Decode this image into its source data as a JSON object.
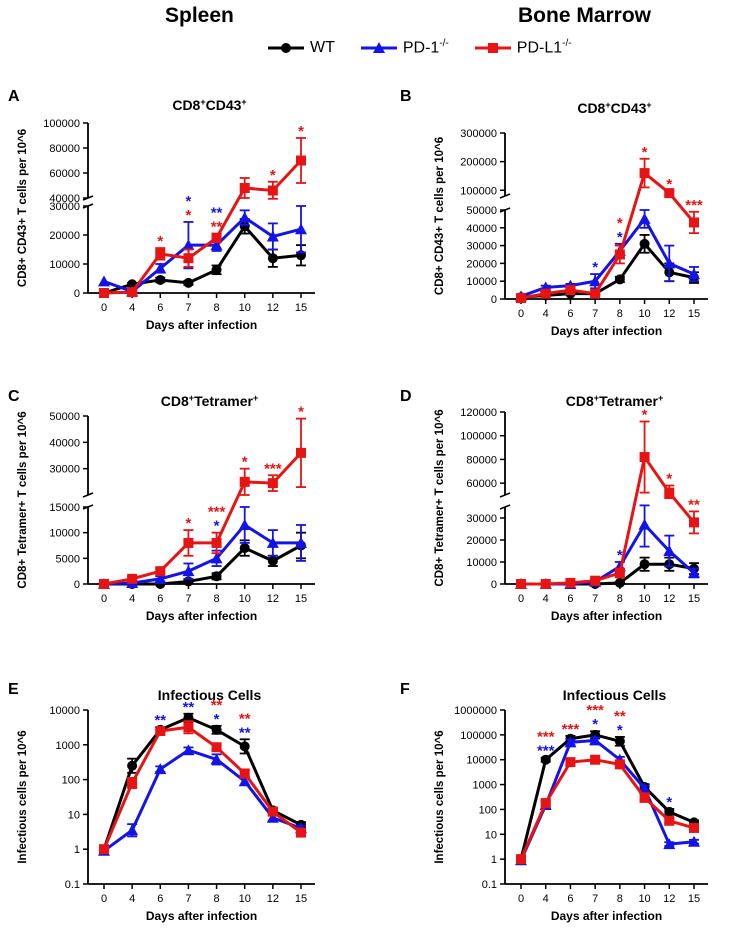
{
  "figure": {
    "col_titles": [
      "Spleen",
      "Bone Marrow"
    ],
    "panel_letters": [
      "A",
      "B",
      "C",
      "D",
      "E",
      "F"
    ]
  },
  "legend": {
    "wt": {
      "label": "WT",
      "color": "#000000",
      "marker": "circle"
    },
    "pd1": {
      "label": "PD-1",
      "sup": "-/-",
      "color": "#1414e6",
      "marker": "triangle"
    },
    "pdl1": {
      "label": "PD-L1",
      "sup": "-/-",
      "color": "#e61414",
      "marker": "square"
    }
  },
  "chart_data": [
    {
      "id": "A",
      "type": "line",
      "title": "CD8",
      "title_sup": "+",
      "title_rest": "CD43",
      "title_sup2": "+",
      "ylabel": "CD8+ CD43+ T cells per 10^6",
      "xlabel": "Days after infection",
      "x": [
        0,
        4,
        6,
        7,
        8,
        10,
        12,
        15
      ],
      "scale": "broken",
      "lower_range": [
        0,
        30000
      ],
      "upper_range": [
        40000,
        100000
      ],
      "lower_ticks": [
        0,
        10000,
        20000,
        30000
      ],
      "upper_ticks": [
        40000,
        60000,
        80000,
        100000
      ],
      "series": [
        {
          "name": "WT",
          "values": [
            0,
            3000,
            4500,
            3500,
            8000,
            23000,
            12000,
            13000
          ],
          "err": [
            0,
            500,
            800,
            700,
            1500,
            2500,
            3000,
            3500
          ]
        },
        {
          "name": "PD-1-/-",
          "values": [
            4000,
            500,
            8500,
            16500,
            16500,
            26000,
            19500,
            22000
          ],
          "err": [
            0,
            500,
            1500,
            8000,
            2000,
            2500,
            4500,
            8000
          ]
        },
        {
          "name": "PD-L1-/-",
          "values": [
            0,
            300,
            13500,
            12000,
            19000,
            48000,
            46000,
            70000
          ],
          "err": [
            0,
            300,
            2000,
            3000,
            1500,
            8000,
            7000,
            18000
          ]
        }
      ],
      "annotations": [
        {
          "x": 6,
          "lines": [
            {
              "text": "*",
              "color": "#e61414"
            }
          ]
        },
        {
          "x": 7,
          "lines": [
            {
              "text": "*",
              "color": "#1414e6"
            },
            {
              "text": "*",
              "color": "#e61414"
            }
          ]
        },
        {
          "x": 8,
          "lines": [
            {
              "text": "**",
              "color": "#1414e6"
            },
            {
              "text": "**",
              "color": "#e61414"
            }
          ]
        },
        {
          "x": 12,
          "lines": [
            {
              "text": "*",
              "color": "#e61414"
            }
          ]
        },
        {
          "x": 15,
          "lines": [
            {
              "text": "*",
              "color": "#e61414"
            }
          ]
        }
      ]
    },
    {
      "id": "B",
      "type": "line",
      "title": "CD8",
      "title_sup": "+",
      "title_rest": "CD43",
      "title_sup2": "+",
      "ylabel": "CD8+ CD43+ T cells per 10^6",
      "xlabel": "Days after infection",
      "x": [
        0,
        4,
        6,
        7,
        8,
        10,
        12,
        15
      ],
      "scale": "broken",
      "lower_range": [
        0,
        50000
      ],
      "upper_range": [
        80000,
        300000
      ],
      "lower_ticks": [
        0,
        10000,
        20000,
        30000,
        40000,
        50000
      ],
      "upper_ticks": [
        100000,
        200000,
        300000
      ],
      "series": [
        {
          "name": "WT",
          "values": [
            1000,
            2000,
            3000,
            3000,
            11000,
            31000,
            15000,
            12000
          ],
          "err": [
            0,
            500,
            500,
            800,
            1500,
            5000,
            5000,
            3000
          ]
        },
        {
          "name": "PD-1-/-",
          "values": [
            1500,
            6500,
            7500,
            10000,
            27000,
            45000,
            20000,
            14000
          ],
          "err": [
            0,
            1000,
            1000,
            4000,
            4000,
            5000,
            10000,
            4000
          ]
        },
        {
          "name": "PD-L1-/-",
          "values": [
            500,
            3000,
            5000,
            3000,
            25000,
            160000,
            90000,
            43000
          ],
          "err": [
            0,
            500,
            1000,
            800,
            5000,
            50000,
            8000,
            6000
          ]
        }
      ],
      "annotations": [
        {
          "x": 7,
          "lines": [
            {
              "text": "*",
              "color": "#1414e6"
            }
          ]
        },
        {
          "x": 8,
          "lines": [
            {
              "text": "*",
              "color": "#e61414"
            },
            {
              "text": "*",
              "color": "#1414e6"
            }
          ]
        },
        {
          "x": 10,
          "lines": [
            {
              "text": "*",
              "color": "#e61414"
            }
          ]
        },
        {
          "x": 12,
          "lines": [
            {
              "text": "*",
              "color": "#e61414"
            }
          ]
        },
        {
          "x": 15,
          "lines": [
            {
              "text": "***",
              "color": "#e61414"
            }
          ]
        }
      ]
    },
    {
      "id": "C",
      "type": "line",
      "title": "CD8",
      "title_sup": "+",
      "title_rest": "Tetramer",
      "title_sup2": "+",
      "ylabel": "CD8+ Tetramer+ T cells per 10^6",
      "xlabel": "Days after infection",
      "x": [
        0,
        4,
        6,
        7,
        8,
        10,
        12,
        15
      ],
      "scale": "broken",
      "lower_range": [
        0,
        15000
      ],
      "upper_range": [
        20000,
        50000
      ],
      "lower_ticks": [
        0,
        5000,
        10000,
        15000
      ],
      "upper_ticks": [
        30000,
        40000,
        50000
      ],
      "series": [
        {
          "name": "WT",
          "values": [
            0,
            0,
            0,
            500,
            1500,
            7000,
            4500,
            7500
          ],
          "err": [
            0,
            0,
            200,
            300,
            600,
            1500,
            1000,
            2500
          ]
        },
        {
          "name": "PD-1-/-",
          "values": [
            0,
            200,
            1000,
            2500,
            5000,
            11500,
            8000,
            8000
          ],
          "err": [
            0,
            200,
            500,
            1500,
            1500,
            3500,
            2500,
            3500
          ]
        },
        {
          "name": "PD-L1-/-",
          "values": [
            0,
            1000,
            2500,
            8000,
            8000,
            25000,
            24500,
            36000
          ],
          "err": [
            0,
            300,
            500,
            2500,
            2000,
            5000,
            3000,
            13000
          ]
        }
      ],
      "annotations": [
        {
          "x": 7,
          "lines": [
            {
              "text": "*",
              "color": "#e61414"
            }
          ]
        },
        {
          "x": 8,
          "lines": [
            {
              "text": "***",
              "color": "#e61414"
            },
            {
              "text": "*",
              "color": "#1414e6"
            }
          ]
        },
        {
          "x": 10,
          "lines": [
            {
              "text": "*",
              "color": "#e61414"
            }
          ]
        },
        {
          "x": 12,
          "lines": [
            {
              "text": "***",
              "color": "#e61414"
            }
          ]
        },
        {
          "x": 15,
          "lines": [
            {
              "text": "*",
              "color": "#e61414"
            }
          ]
        }
      ]
    },
    {
      "id": "D",
      "type": "line",
      "title": "CD8",
      "title_sup": "+",
      "title_rest": "Tetramer",
      "title_sup2": "+",
      "ylabel": "CD8+ Tetramer+ T cells per 10^6",
      "xlabel": "Days after infection",
      "x": [
        0,
        4,
        6,
        7,
        8,
        10,
        12,
        15
      ],
      "scale": "broken",
      "lower_range": [
        0,
        35000
      ],
      "upper_range": [
        50000,
        120000
      ],
      "lower_ticks": [
        0,
        10000,
        20000,
        30000
      ],
      "upper_ticks": [
        60000,
        80000,
        100000,
        120000
      ],
      "series": [
        {
          "name": "WT",
          "values": [
            0,
            0,
            0,
            0,
            500,
            9000,
            9000,
            7000
          ],
          "err": [
            0,
            0,
            0,
            200,
            300,
            3000,
            3000,
            2500
          ]
        },
        {
          "name": "PD-1-/-",
          "values": [
            0,
            0,
            0,
            1000,
            8000,
            27000,
            15000,
            5000
          ],
          "err": [
            0,
            0,
            200,
            500,
            2000,
            10000,
            7000,
            2000
          ]
        },
        {
          "name": "PD-L1-/-",
          "values": [
            0,
            0,
            500,
            1500,
            5000,
            82000,
            52000,
            28000
          ],
          "err": [
            0,
            0,
            200,
            600,
            2000,
            30000,
            6000,
            5000
          ]
        }
      ],
      "annotations": [
        {
          "x": 8,
          "lines": [
            {
              "text": "*",
              "color": "#1414e6"
            }
          ]
        },
        {
          "x": 10,
          "lines": [
            {
              "text": "*",
              "color": "#e61414"
            }
          ]
        },
        {
          "x": 12,
          "lines": [
            {
              "text": "*",
              "color": "#e61414"
            }
          ]
        },
        {
          "x": 15,
          "lines": [
            {
              "text": "**",
              "color": "#e61414"
            }
          ]
        }
      ]
    },
    {
      "id": "E",
      "type": "line",
      "title": "Infectious Cells",
      "ylabel": "Infectious cells per 10^6",
      "xlabel": "Days after infection",
      "x": [
        0,
        4,
        6,
        7,
        8,
        10,
        12,
        15
      ],
      "scale": "log",
      "ylim": [
        0.1,
        10000
      ],
      "ticks": [
        "0.1",
        "1",
        "10",
        "100",
        "1000",
        "10000"
      ],
      "series": [
        {
          "name": "WT",
          "values": [
            1,
            250,
            2700,
            6000,
            2700,
            900,
            13,
            5
          ],
          "errf": [
            1,
            1.6,
            1.2,
            1.3,
            1.3,
            1.6,
            1.2,
            1.2
          ]
        },
        {
          "name": "PD-1-/-",
          "values": [
            0.9,
            3.5,
            200,
            700,
            380,
            90,
            8,
            4
          ],
          "errf": [
            1,
            1.5,
            1.2,
            1.2,
            1.4,
            1.3,
            1.2,
            1.2
          ]
        },
        {
          "name": "PD-L1-/-",
          "values": [
            1,
            80,
            2500,
            3200,
            850,
            150,
            12,
            3
          ],
          "errf": [
            1,
            1.4,
            1.3,
            1.5,
            1.2,
            1.3,
            1.2,
            1.2
          ]
        }
      ],
      "annotations": [
        {
          "x": 6,
          "lines": [
            {
              "text": "**",
              "color": "#1414e6"
            }
          ]
        },
        {
          "x": 7,
          "lines": [
            {
              "text": "**",
              "color": "#1414e6"
            }
          ]
        },
        {
          "x": 8,
          "lines": [
            {
              "text": "**",
              "color": "#e61414"
            },
            {
              "text": "*",
              "color": "#1414e6"
            }
          ]
        },
        {
          "x": 10,
          "lines": [
            {
              "text": "**",
              "color": "#e61414"
            },
            {
              "text": "**",
              "color": "#1414e6"
            }
          ]
        }
      ]
    },
    {
      "id": "F",
      "type": "line",
      "title": "Infectious Cells",
      "ylabel": "Infectious cells per 10^6",
      "xlabel": "Days after infection",
      "x": [
        0,
        4,
        6,
        7,
        8,
        10,
        12,
        15
      ],
      "scale": "log",
      "ylim": [
        0.1,
        1000000
      ],
      "ticks": [
        "0.1",
        "1",
        "10",
        "100",
        "1000",
        "10000",
        "100000",
        "1000000"
      ],
      "series": [
        {
          "name": "WT",
          "values": [
            1,
            10000,
            70000,
            100000,
            55000,
            800,
            80,
            30
          ],
          "errf": [
            1,
            1.2,
            1.3,
            1.4,
            1.5,
            1.3,
            1.3,
            1.2
          ]
        },
        {
          "name": "PD-1-/-",
          "values": [
            0.9,
            150,
            50000,
            60000,
            10000,
            700,
            4,
            5
          ],
          "errf": [
            1,
            1.3,
            1.3,
            1.3,
            1.3,
            1.3,
            1.2,
            1.2
          ]
        },
        {
          "name": "PD-L1-/-",
          "values": [
            1,
            180,
            8000,
            10000,
            6500,
            300,
            35,
            18
          ],
          "errf": [
            1,
            1.3,
            1.3,
            1.3,
            1.3,
            1.5,
            1.3,
            1.2
          ]
        }
      ],
      "annotations": [
        {
          "x": 4,
          "lines": [
            {
              "text": "***",
              "color": "#e61414"
            },
            {
              "text": "***",
              "color": "#1414e6"
            }
          ]
        },
        {
          "x": 6,
          "lines": [
            {
              "text": "***",
              "color": "#e61414"
            }
          ]
        },
        {
          "x": 7,
          "lines": [
            {
              "text": "***",
              "color": "#e61414"
            },
            {
              "text": "*",
              "color": "#1414e6"
            }
          ]
        },
        {
          "x": 8,
          "lines": [
            {
              "text": "**",
              "color": "#e61414"
            },
            {
              "text": "*",
              "color": "#1414e6"
            }
          ]
        },
        {
          "x": 12,
          "lines": [
            {
              "text": "*",
              "color": "#1414e6"
            }
          ]
        }
      ]
    }
  ]
}
